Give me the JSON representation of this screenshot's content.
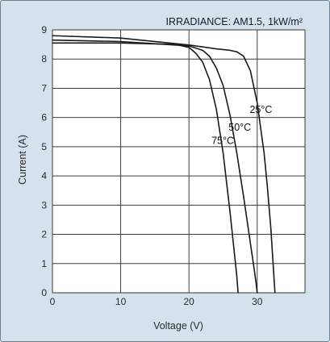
{
  "colors": {
    "panel": "#d5e2ee",
    "plot_background": "#ffffff",
    "grid": "#3a3a3a",
    "curve": "#1a1a1a",
    "frame_border": "#6d7f93"
  },
  "chart_data": {
    "type": "line",
    "title": "",
    "annotation": "IRRADIANCE: AM1.5, 1kW/m²",
    "xlabel": "Voltage (V)",
    "ylabel": "Current (A)",
    "xlim": [
      0,
      37
    ],
    "ylim": [
      0,
      9
    ],
    "xticks": [
      0,
      10,
      20,
      30
    ],
    "yticks": [
      0,
      1,
      2,
      3,
      4,
      5,
      6,
      7,
      8,
      9
    ],
    "grid": true,
    "legend": "none",
    "series": [
      {
        "name": "25°C",
        "x": [
          0,
          10,
          20,
          24,
          26,
          27,
          28,
          29,
          30,
          31,
          31.5,
          32,
          32.3,
          32.6
        ],
        "y": [
          8.8,
          8.72,
          8.48,
          8.35,
          8.3,
          8.25,
          8.1,
          7.6,
          6.5,
          4.8,
          3.6,
          2.2,
          1.1,
          0
        ]
      },
      {
        "name": "50°C",
        "x": [
          0,
          10,
          20,
          22,
          23,
          24,
          25,
          26,
          27,
          28,
          29,
          29.5,
          29.8,
          30
        ],
        "y": [
          8.65,
          8.6,
          8.45,
          8.3,
          8.1,
          7.7,
          7.1,
          6.1,
          4.8,
          3.3,
          1.7,
          0.9,
          0.4,
          0
        ]
      },
      {
        "name": "75°C",
        "x": [
          0,
          10,
          18,
          20,
          21,
          22,
          23,
          24,
          25,
          26,
          26.5,
          27,
          27.2
        ],
        "y": [
          8.55,
          8.55,
          8.5,
          8.4,
          8.2,
          7.9,
          7.3,
          6.3,
          4.8,
          2.8,
          1.7,
          0.6,
          0
        ]
      }
    ]
  }
}
